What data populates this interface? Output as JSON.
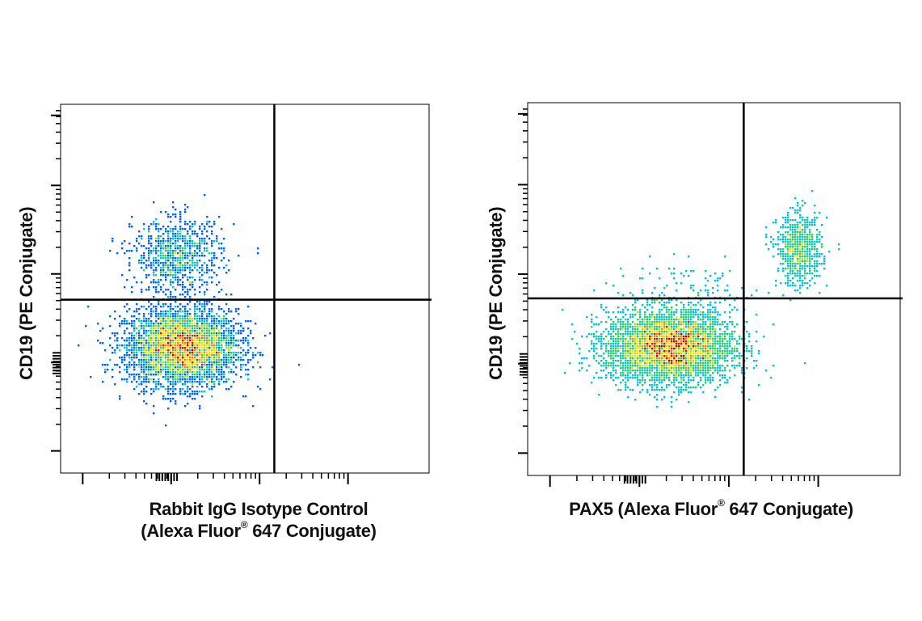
{
  "chart_data": [
    {
      "type": "scatter",
      "plot": "flow-cytometry-density-dotplot",
      "xlabel_line1": "Rabbit IgG Isotype Control",
      "xlabel_line2_pre": "(Alexa Fluor",
      "xlabel_line2_sup": "®",
      "xlabel_line2_post": " 647 Conjugate)",
      "ylabel": "CD19 (PE Conjugate)",
      "xlim": [
        0,
        1
      ],
      "ylim": [
        0,
        1
      ],
      "gate_x": 0.58,
      "gate_y": 0.47,
      "populations": [
        {
          "cx": 0.33,
          "cy": 0.34,
          "sx": 0.075,
          "sy": 0.052,
          "n": 4200
        },
        {
          "cx": 0.32,
          "cy": 0.59,
          "sx": 0.06,
          "sy": 0.05,
          "n": 900
        }
      ]
    },
    {
      "type": "scatter",
      "plot": "flow-cytometry-density-dotplot",
      "xlabel_line1": "",
      "xlabel_line2_pre": "PAX5 (Alexa Fluor",
      "xlabel_line2_sup": "®",
      "xlabel_line2_post": " 647 Conjugate)",
      "ylabel": "CD19 (PE Conjugate)",
      "xlim": [
        0,
        1
      ],
      "ylim": [
        0,
        1
      ],
      "gate_x": 0.58,
      "gate_y": 0.475,
      "populations": [
        {
          "cx": 0.38,
          "cy": 0.345,
          "sx": 0.085,
          "sy": 0.048,
          "n": 4600
        },
        {
          "cx": 0.73,
          "cy": 0.605,
          "sx": 0.03,
          "sy": 0.048,
          "n": 700
        },
        {
          "cx": 0.44,
          "cy": 0.49,
          "sx": 0.1,
          "sy": 0.04,
          "n": 120
        }
      ]
    }
  ],
  "colors": {
    "density_scale": [
      "#0000d8",
      "#0060ff",
      "#00c0e0",
      "#20d070",
      "#b0e010",
      "#ffe000",
      "#ff8000",
      "#e01000",
      "#b00000"
    ],
    "axis": "#000000",
    "gate": "#000000"
  }
}
